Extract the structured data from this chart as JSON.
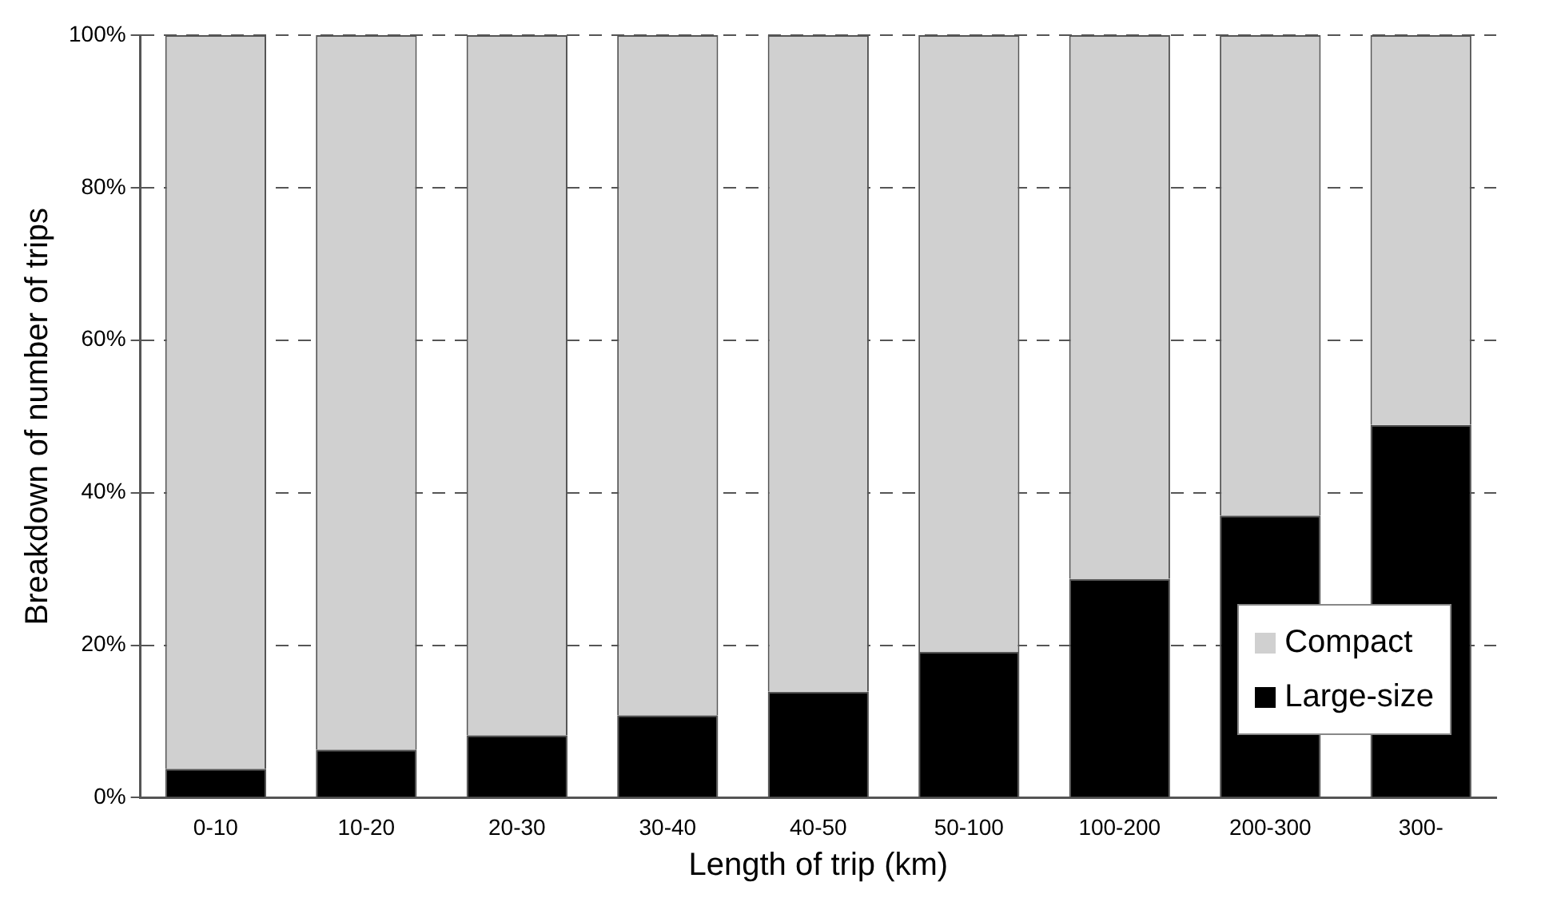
{
  "chart_data": {
    "type": "bar",
    "xlabel": "Length of trip (km)",
    "ylabel": "Breakdown of number of trips",
    "categories": [
      "0-10",
      "10-20",
      "20-30",
      "30-40",
      "40-50",
      "50-100",
      "100-200",
      "200-300",
      "300-"
    ],
    "series": [
      {
        "name": "Large-size",
        "color": "#000000",
        "values": [
          3.8,
          6.3,
          8.2,
          10.8,
          13.9,
          19.1,
          28.7,
          37.0,
          48.9
        ]
      },
      {
        "name": "Compact",
        "color": "#d0d0d0",
        "values": [
          96.2,
          93.7,
          91.8,
          89.2,
          86.1,
          80.9,
          71.3,
          63.0,
          51.1
        ]
      }
    ],
    "stacked": true,
    "ylim": [
      0,
      100
    ],
    "yticks": [
      {
        "value": 0,
        "label": "0%"
      },
      {
        "value": 20,
        "label": "20%"
      },
      {
        "value": 40,
        "label": "40%"
      },
      {
        "value": 60,
        "label": "60%"
      },
      {
        "value": 80,
        "label": "80%"
      },
      {
        "value": 100,
        "label": "100%"
      }
    ],
    "grid": "y",
    "legend": "bottom right"
  }
}
